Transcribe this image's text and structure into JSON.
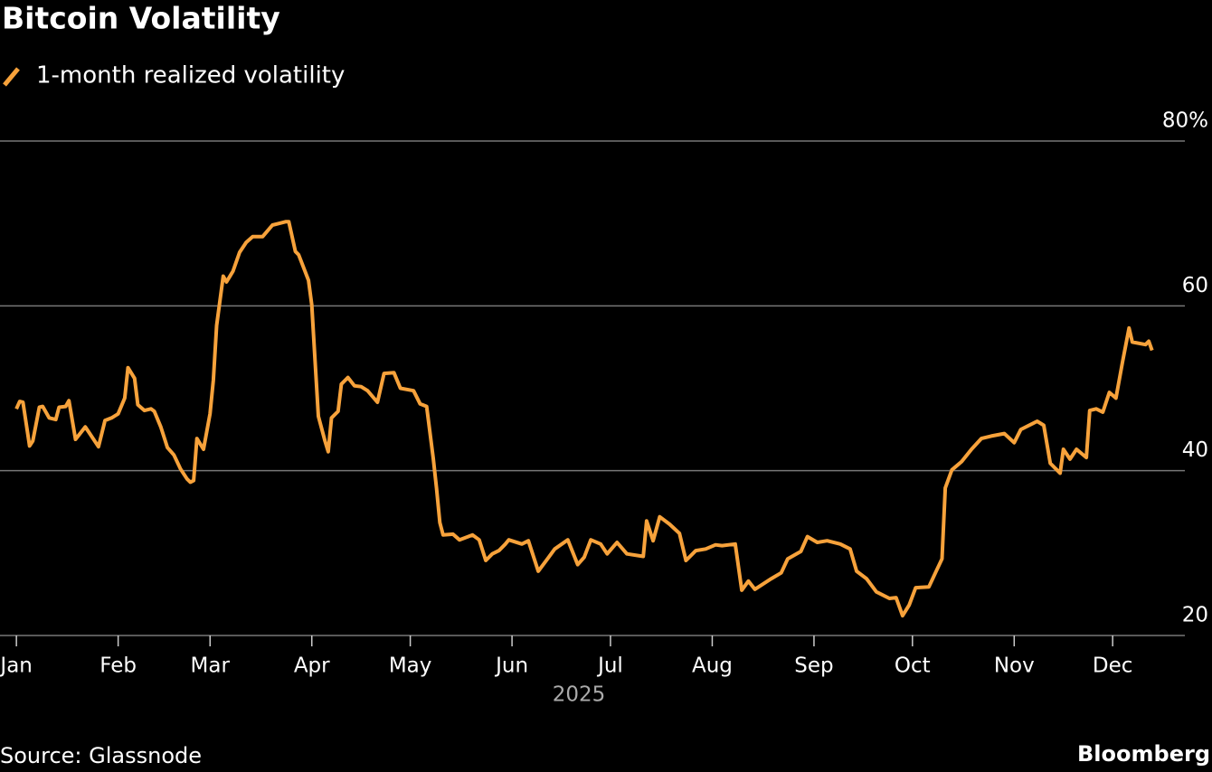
{
  "chart_data": {
    "type": "line",
    "title": "Bitcoin Volatility",
    "xlabel": "2025",
    "source": "Source: Glassnode",
    "brand": "Bloomberg",
    "series": [
      {
        "name": "1-month realized volatility",
        "color": "#f7a23b",
        "x": [
          0,
          1,
          2,
          4,
          5,
          7,
          8,
          10,
          12,
          13,
          15,
          16,
          18,
          21,
          22,
          25,
          27,
          29,
          31,
          33,
          34,
          36,
          37,
          39,
          41,
          42,
          44,
          46,
          48,
          50,
          52,
          53,
          54,
          55,
          57,
          59,
          60,
          61,
          63,
          64,
          66,
          68,
          70,
          72,
          75,
          78,
          80,
          82,
          83,
          85,
          86,
          89,
          90,
          91,
          92,
          94,
          95,
          96,
          98,
          99,
          101,
          103,
          105,
          107,
          110,
          112,
          115,
          117,
          121,
          123,
          125,
          127,
          128,
          129,
          130,
          133,
          135,
          139,
          141,
          143,
          145,
          147,
          149,
          150,
          154,
          156,
          159,
          162,
          164,
          168,
          171,
          173,
          175,
          178,
          180,
          183,
          186,
          191,
          192,
          194,
          196,
          199,
          202,
          204,
          207,
          210,
          213,
          215,
          219,
          221,
          223,
          225,
          230,
          233,
          235,
          239,
          241,
          244,
          247,
          251,
          254,
          256,
          259,
          262,
          266,
          268,
          270,
          272,
          274,
          278,
          280,
          282,
          283,
          285,
          288,
          291,
          294,
          297,
          301,
          304,
          306,
          311,
          313,
          315,
          318,
          319,
          321,
          323,
          326,
          327,
          329,
          331,
          333,
          335,
          337,
          339,
          340,
          344,
          345,
          346
        ],
        "values": [
          47.5,
          48.4,
          48.3,
          43,
          43.6,
          47.7,
          47.8,
          46.4,
          46.2,
          47.7,
          47.8,
          48.5,
          43.8,
          45.3,
          44.7,
          42.9,
          46.1,
          46.4,
          46.9,
          48.8,
          52.5,
          51.2,
          48,
          47.3,
          47.5,
          47.2,
          45.3,
          42.8,
          41.9,
          40.2,
          39,
          38.6,
          38.8,
          43.9,
          42.6,
          46.9,
          51,
          57.6,
          63.6,
          62.9,
          64.2,
          66.5,
          67.7,
          68.4,
          68.4,
          69.8,
          70,
          70.2,
          70.2,
          66.6,
          66.2,
          63.1,
          60.1,
          53.2,
          46.6,
          43.6,
          42.3,
          46.4,
          47.2,
          50.5,
          51.3,
          50.3,
          50.2,
          49.7,
          48.3,
          51.8,
          51.9,
          50,
          49.7,
          48.1,
          47.8,
          41.5,
          37.9,
          33.7,
          32.2,
          32.3,
          31.6,
          32.2,
          31.6,
          29.1,
          29.9,
          30.3,
          31.1,
          31.6,
          31.1,
          31.5,
          27.8,
          29.4,
          30.5,
          31.6,
          28.6,
          29.5,
          31.6,
          31.1,
          29.9,
          31.3,
          29.9,
          29.6,
          33.9,
          31.5,
          34.4,
          33.5,
          32.4,
          29.1,
          30.3,
          30.5,
          31,
          30.9,
          31.1,
          25.5,
          26.6,
          25.6,
          26.9,
          27.6,
          29.3,
          30.2,
          32,
          31.3,
          31.5,
          31.1,
          30.5,
          27.8,
          26.9,
          25.3,
          24.5,
          24.6,
          22.4,
          23.7,
          25.8,
          25.9,
          27.6,
          29.3,
          37.9,
          40.1,
          41.1,
          42.6,
          43.9,
          44.2,
          44.5,
          43.4,
          45,
          46,
          45.5,
          40.9,
          39.7,
          42.6,
          41.4,
          42.6,
          41.6,
          47.3,
          47.5,
          47.1,
          49.5,
          48.8,
          53.2,
          57.3,
          55.6,
          55.3,
          55.7,
          54.6
        ]
      }
    ],
    "xlim": [
      -5,
      356
    ],
    "xticks": [
      {
        "value": 0,
        "label": "Jan"
      },
      {
        "value": 31,
        "label": "Feb"
      },
      {
        "value": 59,
        "label": "Mar"
      },
      {
        "value": 90,
        "label": "Apr"
      },
      {
        "value": 120,
        "label": "May"
      },
      {
        "value": 151,
        "label": "Jun"
      },
      {
        "value": 181,
        "label": "Jul"
      },
      {
        "value": 212,
        "label": "Aug"
      },
      {
        "value": 243,
        "label": "Sep"
      },
      {
        "value": 273,
        "label": "Oct"
      },
      {
        "value": 304,
        "label": "Nov"
      },
      {
        "value": 334,
        "label": "Dec"
      }
    ],
    "ylim": [
      20,
      80
    ],
    "yticks": [
      20,
      40,
      60,
      {
        "value": 80,
        "label": "80%"
      }
    ],
    "grid": true
  }
}
